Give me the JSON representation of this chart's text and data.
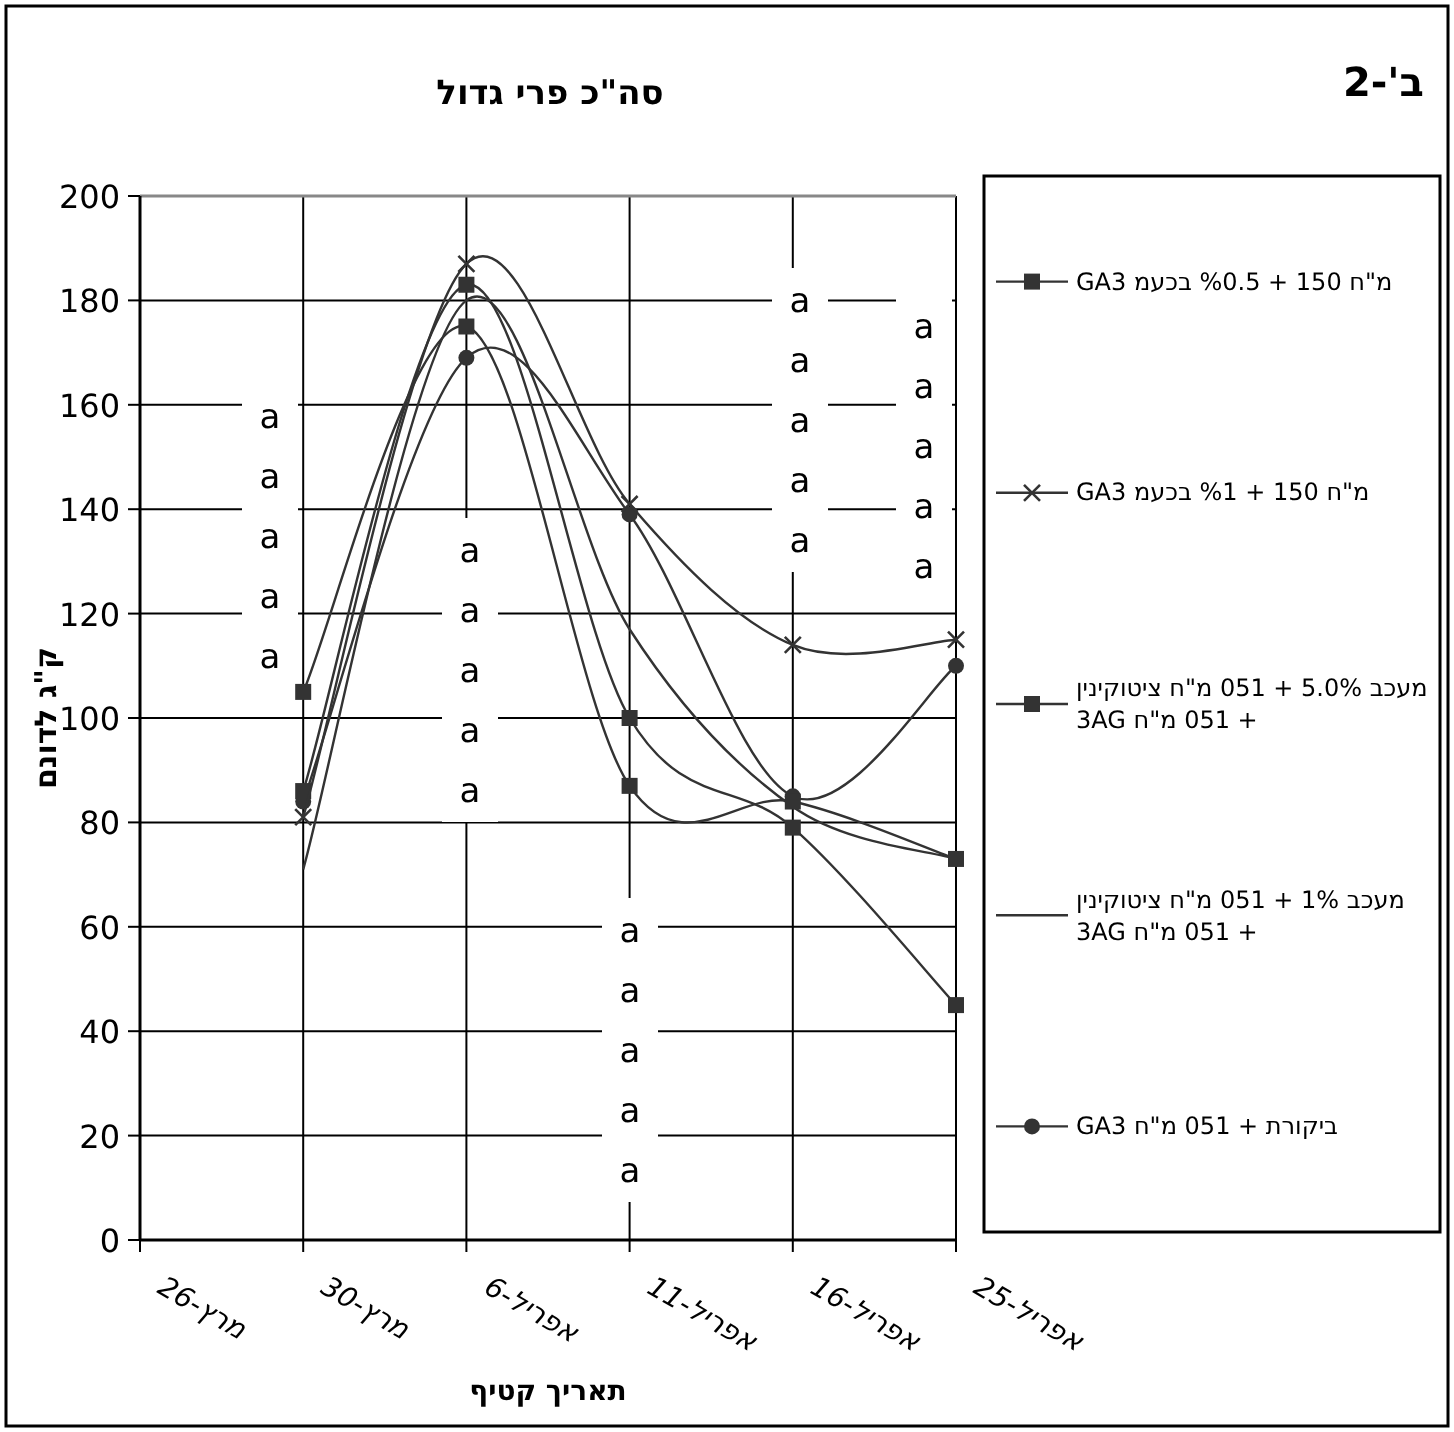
{
  "chart_data": {
    "type": "line",
    "title": "סה\"כ פרי גדול",
    "xlabel": "תאריך קטיף",
    "ylabel": "ק\"ג לדונם",
    "categories": [
      "מרץ-26",
      "מרץ-30",
      "אפריל-6",
      "אפריל-11",
      "אפריל-16",
      "אפריל-25"
    ],
    "ylim": [
      0,
      200
    ],
    "yticks": [
      0,
      20,
      40,
      60,
      80,
      100,
      120,
      140,
      160,
      180,
      200
    ],
    "grid": true,
    "legend": "right",
    "series": [
      {
        "name": "מ\"ח 150 + %0.5 בכעמ GA3",
        "color": "#333333",
        "marker": "square",
        "values": [
          null,
          105,
          175,
          87,
          84,
          73
        ]
      },
      {
        "name": "מ\"ח 150 + %1 בכעמ GA3",
        "color": "#333333",
        "marker": "cross",
        "values": [
          null,
          81,
          187,
          141,
          114,
          115
        ]
      },
      {
        "name": "מעכב 5.0% + 051 מ\"ח ציטוקינין + 051 מ\"ח 3AG",
        "color": "#333333",
        "marker": "square",
        "values": [
          null,
          86,
          183,
          100,
          79,
          45
        ]
      },
      {
        "name": "מעכב 1% + 051 מ\"ח ציטוקינין + 051 מ\"ח 3AG",
        "color": "#333333",
        "marker": "none",
        "values": [
          null,
          71,
          180,
          117,
          83,
          73
        ]
      },
      {
        "name": "ביקורת + 051 מ\"ח GA3",
        "color": "#333333",
        "marker": "circle",
        "values": [
          null,
          84,
          169,
          139,
          85,
          110
        ]
      }
    ],
    "annotations": [
      "ב'-2",
      "a",
      "a",
      "a",
      "a",
      "a",
      "a",
      "a",
      "a",
      "a",
      "a",
      "a",
      "a",
      "a",
      "a",
      "a",
      "a",
      "a",
      "a",
      "a",
      "a",
      "a",
      "a",
      "a",
      "a",
      "a"
    ]
  }
}
